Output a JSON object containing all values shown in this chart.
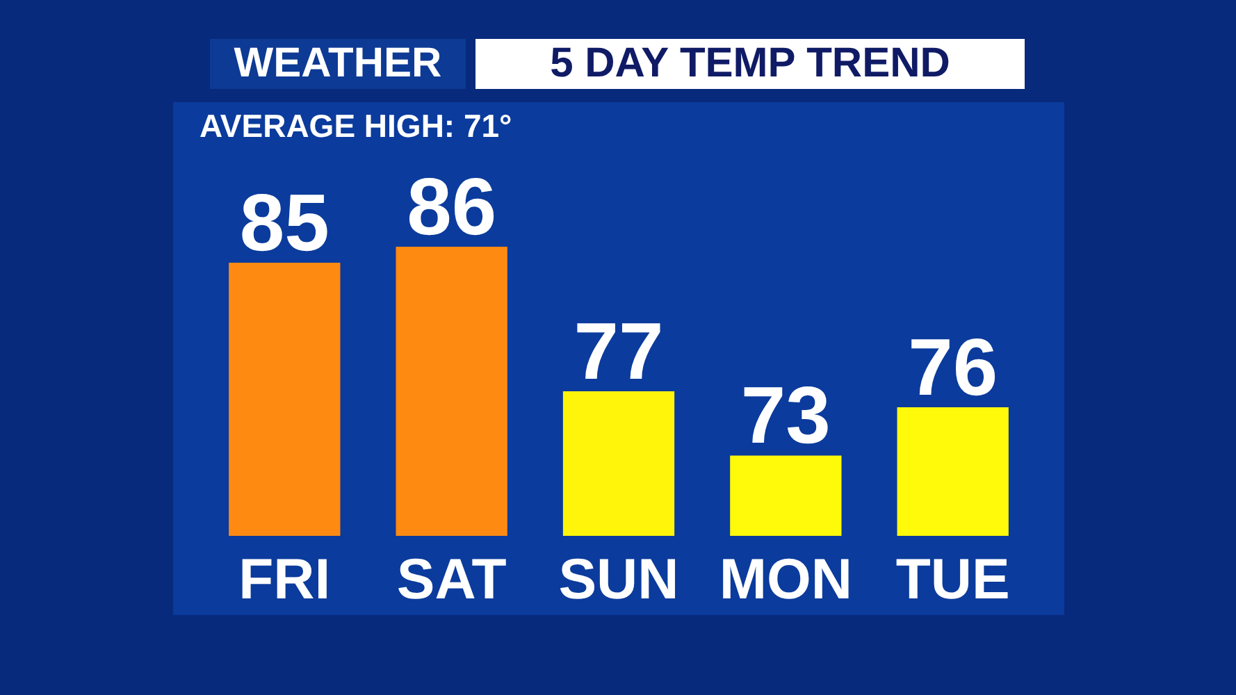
{
  "chart_data": {
    "type": "bar",
    "title": "WEATHER",
    "subtitle": "5 DAY TEMP TREND",
    "annotations": [
      "AVERAGE HIGH: 71°"
    ],
    "categories": [
      "FRI",
      "SAT",
      "SUN",
      "MON",
      "TUE"
    ],
    "values": [
      85,
      86,
      77,
      73,
      76
    ],
    "colors": [
      "#ff8a12",
      "#ff8a12",
      "#fff50a",
      "#fff90a",
      "#fff90a"
    ],
    "ylim": [
      68,
      95
    ],
    "data_labels": true,
    "tick_labels": "x"
  }
}
